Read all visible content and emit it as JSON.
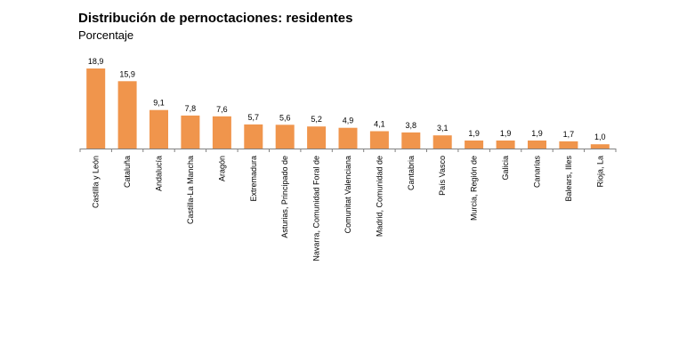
{
  "chart_data": {
    "type": "bar",
    "title": "Distribución de pernoctaciones: residentes",
    "subtitle": "Porcentaje",
    "xlabel": "",
    "ylabel": "",
    "ylim": [
      0,
      18.9
    ],
    "grid": false,
    "legend": "none",
    "decimal_separator": ",",
    "bar_color": "#F0954C",
    "categories": [
      "Castilla y León",
      "Cataluña",
      "Andalucía",
      "Castilla-La Mancha",
      "Aragón",
      "Extremadura",
      "Asturias, Principado de",
      "Navarra, Comunidad Foral de",
      "Comunitat Valenciana",
      "Madrid, Comunidad de",
      "Cantabria",
      "País Vasco",
      "Murcia, Región de",
      "Galicia",
      "Canarias",
      "Balears, Illes",
      "Rioja, La"
    ],
    "values": [
      18.9,
      15.9,
      9.1,
      7.8,
      7.6,
      5.7,
      5.6,
      5.2,
      4.9,
      4.1,
      3.8,
      3.1,
      1.9,
      1.9,
      1.9,
      1.7,
      1.0
    ]
  }
}
